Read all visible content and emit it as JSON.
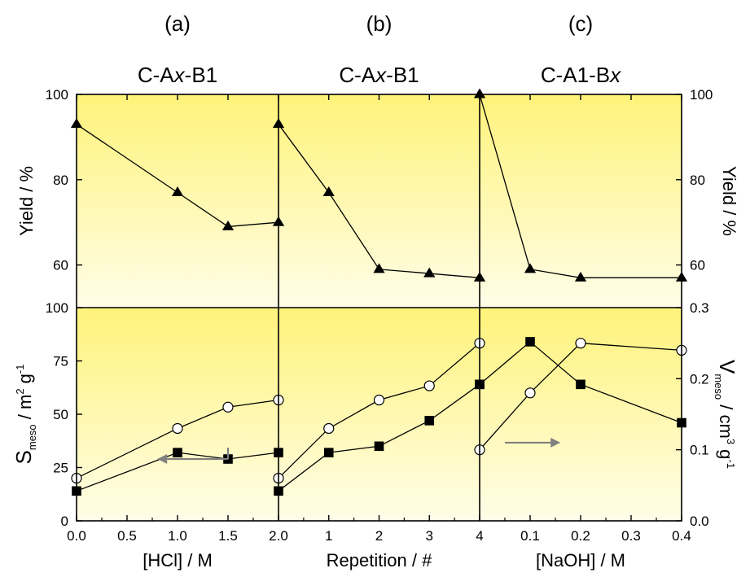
{
  "chart_data": {
    "type": "line",
    "panels": [
      {
        "letter": "(a)",
        "title_parts": [
          "C-A",
          "x",
          "-B1"
        ],
        "xlabel": "[HCl] / M",
        "xlim": [
          0,
          2
        ],
        "xticks": [
          0,
          0.5,
          1,
          1.5,
          2
        ],
        "xtick_labels": [
          "0.0",
          "0.5",
          "1.0",
          "1.5",
          "2.0"
        ],
        "yield": {
          "x": [
            0,
            1,
            1.5,
            2
          ],
          "y": [
            93,
            77,
            69,
            70
          ]
        },
        "smeso": {
          "x": [
            0,
            1,
            1.5,
            2
          ],
          "y": [
            14,
            32,
            29,
            32
          ]
        },
        "vmeso": {
          "x": [
            0,
            1,
            1.5,
            2
          ],
          "y": [
            0.06,
            0.13,
            0.16,
            0.17
          ]
        }
      },
      {
        "letter": "(b)",
        "title_parts": [
          "C-A",
          "x",
          "-B1"
        ],
        "xlabel": "Repetition / #",
        "xlim": [
          0,
          4
        ],
        "xticks": [
          1,
          2,
          3,
          4
        ],
        "xtick_labels": [
          "1",
          "2",
          "3",
          "4"
        ],
        "yield": {
          "x": [
            0,
            1,
            2,
            3,
            4
          ],
          "y": [
            93,
            77,
            59,
            58,
            57
          ]
        },
        "smeso": {
          "x": [
            0,
            1,
            2,
            3,
            4
          ],
          "y": [
            14,
            32,
            35,
            47,
            64
          ]
        },
        "vmeso": {
          "x": [
            0,
            1,
            2,
            3,
            4
          ],
          "y": [
            0.06,
            0.13,
            0.17,
            0.19,
            0.25
          ]
        }
      },
      {
        "letter": "(c)",
        "title_parts": [
          "C-A1-B",
          "x",
          ""
        ],
        "xlabel": "[NaOH] / M",
        "xlim": [
          0,
          0.4
        ],
        "xticks": [
          0.1,
          0.2,
          0.3,
          0.4
        ],
        "xtick_labels": [
          "0.1",
          "0.2",
          "0.3",
          "0.4"
        ],
        "yield": {
          "x": [
            0,
            0.1,
            0.2,
            0.4
          ],
          "y": [
            100,
            59,
            57,
            57
          ]
        },
        "smeso": {
          "x": [
            0,
            0.1,
            0.2,
            0.4
          ],
          "y": [
            64,
            84,
            64,
            46
          ]
        },
        "vmeso": {
          "x": [
            0,
            0.1,
            0.2,
            0.4
          ],
          "y": [
            0.1,
            0.18,
            0.25,
            0.24
          ]
        }
      }
    ],
    "yield_axis": {
      "label": "Yield / %",
      "ylim": [
        50,
        100
      ],
      "ticks": [
        60,
        80,
        100
      ],
      "tick_labels": [
        "60",
        "80",
        "100"
      ]
    },
    "smeso_axis": {
      "label_main": "S",
      "label_sub": "meso",
      "label_rest": " / m",
      "label_sup1": "2",
      "label_g": " g",
      "label_sup2": "-1",
      "ylim": [
        0,
        100
      ],
      "ticks": [
        0,
        25,
        50,
        75,
        100
      ],
      "tick_labels": [
        "0",
        "25",
        "50",
        "75",
        "100"
      ]
    },
    "vmeso_axis": {
      "label_main": "V",
      "label_sub": "meso",
      "label_rest": " / cm",
      "label_sup1": "3",
      "label_g": " g",
      "label_sup2": "-1",
      "ylim": [
        0,
        0.3
      ],
      "ticks": [
        0,
        0.1,
        0.2,
        0.3
      ],
      "tick_labels": [
        "0.0",
        "0.1",
        "0.2",
        "0.3"
      ]
    },
    "markers": {
      "yield": "filled-triangle",
      "smeso": "filled-square",
      "vmeso": "open-circle"
    },
    "arrows": [
      {
        "panel": 0,
        "direction": "left",
        "points_to": "left-axis",
        "from_x": 1.5,
        "to_x": 0.8,
        "y": 29
      },
      {
        "panel": 2,
        "direction": "right",
        "points_to": "right-axis",
        "from_x": 0.05,
        "to_x": 0.16,
        "y": 0.11
      }
    ],
    "colors": {
      "background_top": "#fff37a",
      "background_bottom": "#fffde8",
      "arrow": "#808080",
      "line": "#000000"
    },
    "grid": false,
    "legend": "none"
  }
}
